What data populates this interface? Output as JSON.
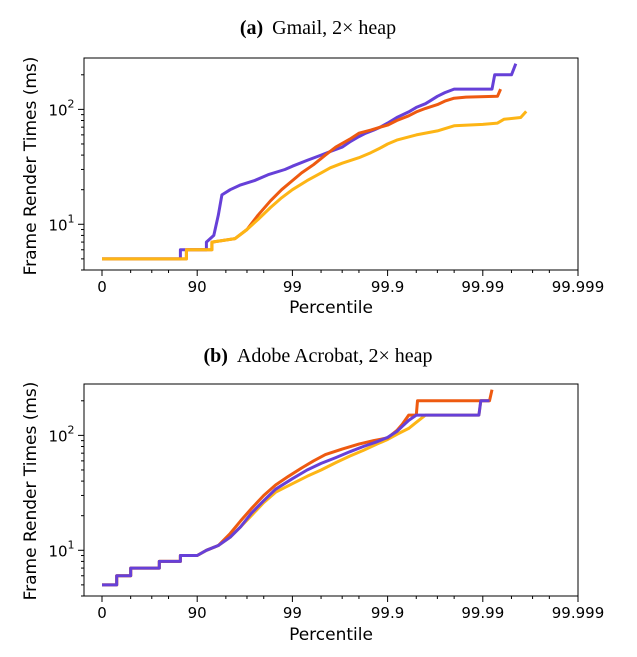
{
  "colors": {
    "purple": "#6640d8",
    "orange": "#ee5a10",
    "yellow": "#fdb515"
  },
  "chart_data": [
    {
      "type": "line",
      "title_prefix": "(a)",
      "title": "Gmail, 2× heap",
      "xlabel": "Percentile",
      "ylabel": "Frame Render Times (ms)",
      "x_scale": "log-tail (-log10(1 - p/100))",
      "y_scale": "log",
      "x_ticks": [
        "0",
        "90",
        "99",
        "99.9",
        "99.99",
        "99.999"
      ],
      "x_minor_ticks": [
        50,
        70,
        80,
        95,
        97,
        98,
        99.5,
        99.7,
        99.8,
        99.95,
        99.97,
        99.98,
        99.995,
        99.997,
        99.998
      ],
      "y_ticks": [
        {
          "base": "10",
          "exp": "1",
          "value": 10
        },
        {
          "base": "10",
          "exp": "2",
          "value": 100
        }
      ],
      "ylim": [
        4,
        280
      ],
      "grid": false,
      "series": [
        {
          "color": "purple",
          "points": [
            [
              0,
              5
            ],
            [
              85,
              5
            ],
            [
              85,
              6
            ],
            [
              90,
              6
            ],
            [
              92,
              6
            ],
            [
              92,
              7
            ],
            [
              93.3,
              8
            ],
            [
              94,
              12
            ],
            [
              94.5,
              18
            ],
            [
              95.5,
              20
            ],
            [
              96.5,
              22
            ],
            [
              97.5,
              24
            ],
            [
              98.2,
              27
            ],
            [
              98.8,
              30
            ],
            [
              99,
              32
            ],
            [
              99.3,
              36
            ],
            [
              99.5,
              40
            ],
            [
              99.6,
              43
            ],
            [
              99.7,
              47
            ],
            [
              99.75,
              52
            ],
            [
              99.8,
              58
            ],
            [
              99.83,
              62
            ],
            [
              99.86,
              66
            ],
            [
              99.88,
              70
            ],
            [
              99.9,
              76
            ],
            [
              99.92,
              85
            ],
            [
              99.94,
              95
            ],
            [
              99.95,
              104
            ],
            [
              99.96,
              112
            ],
            [
              99.965,
              120
            ],
            [
              99.97,
              130
            ],
            [
              99.975,
              140
            ],
            [
              99.98,
              150
            ],
            [
              99.992,
              150
            ],
            [
              99.9925,
              200
            ],
            [
              99.995,
              200
            ],
            [
              99.9955,
              250
            ]
          ]
        },
        {
          "color": "orange",
          "points": [
            [
              0,
              5
            ],
            [
              87,
              5
            ],
            [
              87,
              6
            ],
            [
              92,
              6
            ],
            [
              93,
              6
            ],
            [
              93,
              7
            ],
            [
              96,
              7.5
            ],
            [
              97,
              9
            ],
            [
              97.7,
              12
            ],
            [
              98.3,
              16
            ],
            [
              98.7,
              20
            ],
            [
              99,
              24
            ],
            [
              99.2,
              28
            ],
            [
              99.4,
              33
            ],
            [
              99.55,
              40
            ],
            [
              99.65,
              47
            ],
            [
              99.75,
              55
            ],
            [
              99.8,
              62
            ],
            [
              99.85,
              66
            ],
            [
              99.88,
              70
            ],
            [
              99.9,
              73
            ],
            [
              99.92,
              80
            ],
            [
              99.94,
              88
            ],
            [
              99.95,
              95
            ],
            [
              99.96,
              102
            ],
            [
              99.97,
              110
            ],
            [
              99.975,
              118
            ],
            [
              99.98,
              125
            ],
            [
              99.985,
              128
            ],
            [
              99.993,
              130
            ],
            [
              99.9935,
              150
            ]
          ]
        },
        {
          "color": "yellow",
          "points": [
            [
              0,
              5
            ],
            [
              87,
              5
            ],
            [
              87,
              6
            ],
            [
              92,
              6
            ],
            [
              93,
              6
            ],
            [
              93,
              7
            ],
            [
              96,
              7.5
            ],
            [
              97,
              9
            ],
            [
              97.7,
              11
            ],
            [
              98.3,
              14
            ],
            [
              98.7,
              17
            ],
            [
              99,
              20
            ],
            [
              99.3,
              24
            ],
            [
              99.5,
              28
            ],
            [
              99.6,
              31
            ],
            [
              99.7,
              34
            ],
            [
              99.8,
              38
            ],
            [
              99.85,
              42
            ],
            [
              99.88,
              46
            ],
            [
              99.9,
              50
            ],
            [
              99.92,
              54
            ],
            [
              99.95,
              60
            ],
            [
              99.97,
              65
            ],
            [
              99.98,
              72
            ],
            [
              99.99,
              74
            ],
            [
              99.993,
              76
            ],
            [
              99.994,
              82
            ],
            [
              99.996,
              85
            ],
            [
              99.9965,
              96
            ]
          ]
        }
      ]
    },
    {
      "type": "line",
      "title_prefix": "(b)",
      "title": "Adobe Acrobat, 2× heap",
      "xlabel": "Percentile",
      "ylabel": "Frame Render Times (ms)",
      "x_scale": "log-tail (-log10(1 - p/100))",
      "y_scale": "log",
      "x_ticks": [
        "0",
        "90",
        "99",
        "99.9",
        "99.99",
        "99.999"
      ],
      "x_minor_ticks": [
        50,
        70,
        80,
        95,
        97,
        98,
        99.5,
        99.7,
        99.8,
        99.95,
        99.97,
        99.98,
        99.995,
        99.997,
        99.998
      ],
      "y_ticks": [
        {
          "base": "10",
          "exp": "1",
          "value": 10
        },
        {
          "base": "10",
          "exp": "2",
          "value": 100
        }
      ],
      "ylim": [
        4,
        280
      ],
      "grid": false,
      "series": [
        {
          "color": "yellow",
          "points": [
            [
              0,
              5
            ],
            [
              30,
              5
            ],
            [
              30,
              6
            ],
            [
              50,
              6
            ],
            [
              50,
              7
            ],
            [
              75,
              7
            ],
            [
              75,
              8
            ],
            [
              85,
              8
            ],
            [
              85,
              9
            ],
            [
              90,
              9
            ],
            [
              92,
              10
            ],
            [
              94,
              11
            ],
            [
              95.5,
              13
            ],
            [
              96.5,
              16
            ],
            [
              97.3,
              20
            ],
            [
              98,
              26
            ],
            [
              98.5,
              32
            ],
            [
              99,
              38
            ],
            [
              99.3,
              44
            ],
            [
              99.5,
              50
            ],
            [
              99.65,
              58
            ],
            [
              99.75,
              66
            ],
            [
              99.82,
              74
            ],
            [
              99.87,
              84
            ],
            [
              99.9,
              92
            ],
            [
              99.92,
              102
            ],
            [
              99.94,
              115
            ],
            [
              99.95,
              130
            ],
            [
              99.96,
              150
            ],
            [
              99.989,
              150
            ],
            [
              99.9895,
              200
            ],
            [
              99.9915,
              200
            ]
          ]
        },
        {
          "color": "orange",
          "points": [
            [
              0,
              5
            ],
            [
              30,
              5
            ],
            [
              30,
              6
            ],
            [
              50,
              6
            ],
            [
              50,
              7
            ],
            [
              75,
              7
            ],
            [
              75,
              8
            ],
            [
              85,
              8
            ],
            [
              85,
              9
            ],
            [
              90,
              9
            ],
            [
              92,
              10
            ],
            [
              94,
              11
            ],
            [
              95.5,
              14
            ],
            [
              96.5,
              18
            ],
            [
              97.3,
              23
            ],
            [
              98,
              30
            ],
            [
              98.5,
              37
            ],
            [
              98.9,
              44
            ],
            [
              99.2,
              52
            ],
            [
              99.4,
              60
            ],
            [
              99.55,
              68
            ],
            [
              99.7,
              76
            ],
            [
              99.8,
              84
            ],
            [
              99.86,
              90
            ],
            [
              99.9,
              95
            ],
            [
              99.92,
              110
            ],
            [
              99.93,
              125
            ],
            [
              99.94,
              150
            ],
            [
              99.95,
              150
            ],
            [
              99.9515,
              200
            ],
            [
              99.9915,
              200
            ],
            [
              99.992,
              250
            ]
          ]
        },
        {
          "color": "purple",
          "points": [
            [
              0,
              5
            ],
            [
              30,
              5
            ],
            [
              30,
              6
            ],
            [
              50,
              6
            ],
            [
              50,
              7
            ],
            [
              75,
              7
            ],
            [
              75,
              8
            ],
            [
              85,
              8
            ],
            [
              85,
              9
            ],
            [
              90,
              9
            ],
            [
              92,
              10
            ],
            [
              94,
              11
            ],
            [
              95.5,
              13
            ],
            [
              96.5,
              16
            ],
            [
              97.3,
              21
            ],
            [
              98,
              27
            ],
            [
              98.5,
              34
            ],
            [
              99,
              42
            ],
            [
              99.3,
              50
            ],
            [
              99.5,
              57
            ],
            [
              99.65,
              64
            ],
            [
              99.75,
              72
            ],
            [
              99.82,
              80
            ],
            [
              99.87,
              88
            ],
            [
              99.9,
              96
            ],
            [
              99.92,
              108
            ],
            [
              99.93,
              120
            ],
            [
              99.94,
              135
            ],
            [
              99.95,
              150
            ],
            [
              99.989,
              150
            ],
            [
              99.9895,
              200
            ],
            [
              99.9915,
              200
            ]
          ]
        }
      ]
    }
  ]
}
